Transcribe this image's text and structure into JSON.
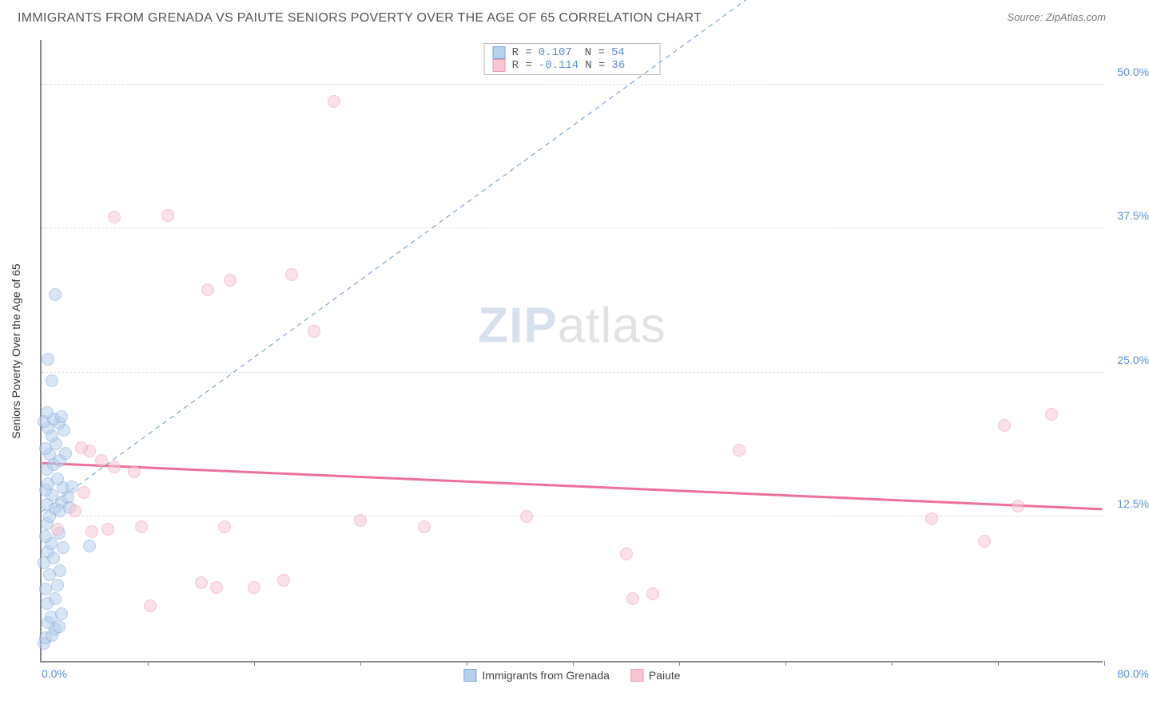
{
  "title": "IMMIGRANTS FROM GRENADA VS PAIUTE SENIORS POVERTY OVER THE AGE OF 65 CORRELATION CHART",
  "source": "Source: ZipAtlas.com",
  "watermark_bold": "ZIP",
  "watermark_rest": "atlas",
  "chart": {
    "type": "scatter",
    "ylabel": "Seniors Poverty Over the Age of 65",
    "xmin": 0,
    "xmax": 80,
    "ymin": 0,
    "ymax": 54,
    "xaxis_min_label": "0.0%",
    "xaxis_max_label": "80.0%",
    "yticks": [
      {
        "v": 12.5,
        "label": "12.5%"
      },
      {
        "v": 25.0,
        "label": "25.0%"
      },
      {
        "v": 37.5,
        "label": "37.5%"
      },
      {
        "v": 50.0,
        "label": "50.0%"
      }
    ],
    "xticks": [
      8,
      16,
      24,
      32,
      40,
      48,
      56,
      64,
      72,
      80
    ],
    "grid_color": "#dddddd",
    "background_color": "#ffffff",
    "marker_size": 16,
    "series": [
      {
        "name": "Immigrants from Grenada",
        "fill": "#b8d0ec",
        "stroke": "#7ca5d8",
        "fill_opacity": 0.55,
        "R_label": "R =",
        "R": "0.107",
        "N_label": "N =",
        "N": "54",
        "trend": {
          "x1": 0,
          "y1": 13.0,
          "x2": 80,
          "y2": 80,
          "dash": "6,5",
          "width": 1.2,
          "color": "#7ca5d8"
        },
        "points": [
          [
            0.2,
            1.5
          ],
          [
            0.3,
            2.0
          ],
          [
            0.8,
            2.2
          ],
          [
            1.0,
            2.8
          ],
          [
            1.3,
            3.0
          ],
          [
            0.5,
            3.3
          ],
          [
            0.7,
            3.8
          ],
          [
            1.5,
            4.1
          ],
          [
            0.4,
            5.0
          ],
          [
            1.0,
            5.4
          ],
          [
            0.3,
            6.2
          ],
          [
            1.2,
            6.6
          ],
          [
            0.6,
            7.5
          ],
          [
            1.4,
            7.8
          ],
          [
            0.2,
            8.5
          ],
          [
            0.9,
            8.9
          ],
          [
            0.5,
            9.5
          ],
          [
            1.6,
            9.8
          ],
          [
            0.7,
            10.2
          ],
          [
            0.3,
            10.8
          ],
          [
            1.3,
            11.1
          ],
          [
            0.4,
            11.9
          ],
          [
            3.6,
            10.0
          ],
          [
            0.6,
            12.5
          ],
          [
            1.0,
            13.2
          ],
          [
            0.4,
            13.6
          ],
          [
            1.5,
            13.8
          ],
          [
            0.8,
            14.4
          ],
          [
            0.3,
            14.8
          ],
          [
            1.6,
            15.0
          ],
          [
            0.5,
            15.4
          ],
          [
            1.2,
            15.8
          ],
          [
            0.4,
            16.6
          ],
          [
            0.9,
            17.0
          ],
          [
            1.4,
            17.4
          ],
          [
            0.6,
            17.9
          ],
          [
            0.3,
            18.4
          ],
          [
            1.1,
            18.8
          ],
          [
            0.8,
            19.5
          ],
          [
            1.7,
            20.0
          ],
          [
            0.5,
            20.2
          ],
          [
            1.3,
            20.6
          ],
          [
            0.2,
            20.8
          ],
          [
            0.9,
            21.0
          ],
          [
            1.5,
            21.2
          ],
          [
            0.4,
            21.5
          ],
          [
            0.8,
            24.3
          ],
          [
            0.5,
            26.2
          ],
          [
            1.0,
            31.8
          ],
          [
            1.4,
            13.0
          ],
          [
            2.0,
            14.2
          ],
          [
            2.3,
            15.1
          ],
          [
            2.1,
            13.3
          ],
          [
            1.8,
            18.0
          ]
        ]
      },
      {
        "name": "Paiute",
        "fill": "#f7c7d4",
        "stroke": "#ec96ae",
        "fill_opacity": 0.55,
        "R_label": "R =",
        "R": "-0.114",
        "N_label": "N =",
        "N": "36",
        "trend": {
          "x1": 0,
          "y1": 17.2,
          "x2": 80,
          "y2": 13.2,
          "dash": "none",
          "width": 3,
          "color": "#ef6f97"
        },
        "points": [
          [
            1.2,
            11.4
          ],
          [
            2.5,
            13.0
          ],
          [
            3.2,
            14.6
          ],
          [
            3.6,
            18.2
          ],
          [
            3.8,
            11.2
          ],
          [
            4.5,
            17.4
          ],
          [
            5.0,
            11.4
          ],
          [
            5.5,
            16.8
          ],
          [
            5.5,
            38.5
          ],
          [
            7.0,
            16.4
          ],
          [
            7.5,
            11.6
          ],
          [
            8.2,
            4.8
          ],
          [
            9.5,
            38.6
          ],
          [
            12.5,
            32.2
          ],
          [
            12.0,
            6.8
          ],
          [
            13.2,
            6.4
          ],
          [
            13.8,
            11.6
          ],
          [
            14.2,
            33.0
          ],
          [
            16.0,
            6.4
          ],
          [
            18.8,
            33.5
          ],
          [
            18.2,
            7.0
          ],
          [
            20.5,
            28.6
          ],
          [
            22.0,
            48.5
          ],
          [
            24.0,
            12.2
          ],
          [
            28.8,
            11.6
          ],
          [
            36.5,
            12.5
          ],
          [
            44.5,
            5.4
          ],
          [
            44.0,
            9.3
          ],
          [
            46.0,
            5.8
          ],
          [
            52.5,
            18.3
          ],
          [
            67.0,
            12.3
          ],
          [
            71.0,
            10.4
          ],
          [
            72.5,
            20.4
          ],
          [
            73.5,
            13.4
          ],
          [
            76.0,
            21.4
          ],
          [
            3.0,
            18.5
          ]
        ]
      }
    ],
    "legend": [
      {
        "label": "Immigrants from Grenada",
        "fill": "#b8d0ec",
        "stroke": "#7ca5d8"
      },
      {
        "label": "Paiute",
        "fill": "#f7c7d4",
        "stroke": "#ec96ae"
      }
    ]
  }
}
